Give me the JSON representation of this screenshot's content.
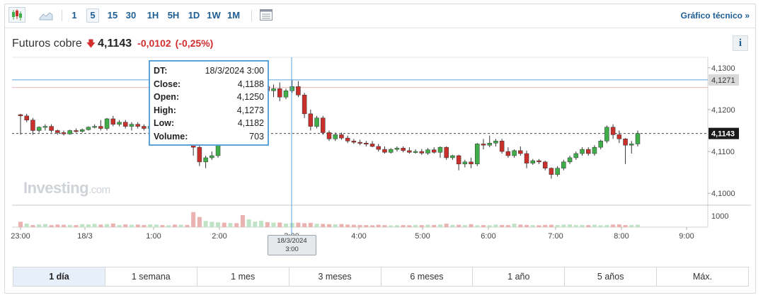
{
  "toolbar": {
    "icons": [
      "candlestick-chart-icon",
      "area-chart-icon",
      "calendar-grid-icon"
    ],
    "timeframes": [
      {
        "label": "1",
        "active": false
      },
      {
        "label": "5",
        "active": true
      },
      {
        "label": "15",
        "active": false
      },
      {
        "label": "30",
        "active": false
      },
      {
        "label": "1H",
        "active": false
      },
      {
        "label": "5H",
        "active": false
      },
      {
        "label": "1D",
        "active": false
      },
      {
        "label": "1W",
        "active": false
      },
      {
        "label": "1M",
        "active": false
      }
    ],
    "technical_link": "Gráfico técnico »"
  },
  "header": {
    "name": "Futuros cobre",
    "price": "4,1143",
    "change": "-0,0102",
    "change_pct": "(-0,25%)",
    "info_label": "i"
  },
  "tooltip": {
    "dt_label": "DT:",
    "dt_value": "18/3/2024 3:00",
    "close_label": "Close:",
    "close_value": "4,1188",
    "open_label": "Open:",
    "open_value": "4,1250",
    "high_label": "High:",
    "high_value": "4,1273",
    "low_label": "Low:",
    "low_value": "4,1182",
    "volume_label": "Volume:",
    "volume_value": "703"
  },
  "crosshair_date_line1": "18/3/2024",
  "crosshair_date_line2": "3:00",
  "watermark": {
    "brand": "Investing",
    "domain": ".com"
  },
  "ranges": [
    {
      "label": "1 día",
      "active": true
    },
    {
      "label": "1 semana",
      "active": false
    },
    {
      "label": "1 mes",
      "active": false
    },
    {
      "label": "3 meses",
      "active": false
    },
    {
      "label": "6 meses",
      "active": false
    },
    {
      "label": "1 año",
      "active": false
    },
    {
      "label": "5 años",
      "active": false
    },
    {
      "label": "Máx.",
      "active": false
    }
  ],
  "colors": {
    "up": "#3fae49",
    "down": "#c9302c",
    "accent": "#1e5d94",
    "crosshair": "#5ba2d9"
  },
  "chart_data": {
    "type": "candlestick",
    "x_ticks": [
      "23:00",
      "18/3",
      "1:00",
      "2:00",
      "3:00",
      "4:00",
      "5:00",
      "6:00",
      "7:00",
      "8:00",
      "9:00"
    ],
    "y_ticks": [
      "4,1000",
      "4,1100",
      "4,1200",
      "4,1300"
    ],
    "y_ticks_values": [
      4.1,
      4.11,
      4.12,
      4.13
    ],
    "volume_tick": "1000",
    "ylim": [
      4.0975,
      4.1325
    ],
    "last_price": 4.1143,
    "last_price_label": "4,1143",
    "crosshair_price": 4.1271,
    "crosshair_price_label": "4,1271",
    "reference_line": 4.1253,
    "candles": [
      [
        4.1188,
        4.119,
        4.114,
        4.1185
      ],
      [
        4.1185,
        4.119,
        4.117,
        4.1175
      ],
      [
        4.1175,
        4.118,
        4.114,
        4.115
      ],
      [
        4.115,
        4.116,
        4.1145,
        4.1158
      ],
      [
        4.1158,
        4.1165,
        4.115,
        4.116
      ],
      [
        4.116,
        4.1165,
        4.1145,
        4.115
      ],
      [
        4.115,
        4.1152,
        4.114,
        4.1145
      ],
      [
        4.1145,
        4.115,
        4.1138,
        4.1142
      ],
      [
        4.1142,
        4.1152,
        4.114,
        4.115
      ],
      [
        4.115,
        4.1155,
        4.1145,
        4.1148
      ],
      [
        4.1148,
        4.1155,
        4.1145,
        4.1152
      ],
      [
        4.1152,
        4.116,
        4.115,
        4.1158
      ],
      [
        4.1158,
        4.1165,
        4.1155,
        4.116
      ],
      [
        4.116,
        4.1175,
        4.115,
        4.1155
      ],
      [
        4.1155,
        4.118,
        4.115,
        4.1178
      ],
      [
        4.1178,
        4.1185,
        4.116,
        4.1165
      ],
      [
        4.1165,
        4.1175,
        4.116,
        4.117
      ],
      [
        4.117,
        4.1175,
        4.1155,
        4.116
      ],
      [
        4.116,
        4.117,
        4.115,
        4.1165
      ],
      [
        4.1165,
        4.117,
        4.1155,
        4.116
      ],
      [
        4.116,
        4.1165,
        4.115,
        4.1155
      ],
      [
        4.1155,
        4.1165,
        4.1145,
        4.116
      ],
      [
        4.116,
        4.117,
        4.115,
        4.1165
      ],
      [
        4.1165,
        4.117,
        4.1155,
        4.1158
      ],
      [
        4.1158,
        4.1165,
        4.115,
        4.116
      ],
      [
        4.116,
        4.1165,
        4.1145,
        4.115
      ],
      [
        4.115,
        4.116,
        4.114,
        4.1155
      ],
      [
        4.1155,
        4.116,
        4.1145,
        4.115
      ],
      [
        4.115,
        4.1155,
        4.109,
        4.111
      ],
      [
        4.111,
        4.1115,
        4.1065,
        4.1075
      ],
      [
        4.1075,
        4.109,
        4.106,
        4.1085
      ],
      [
        4.1085,
        4.11,
        4.108,
        4.109
      ],
      [
        4.109,
        4.124,
        4.1085,
        4.123
      ],
      [
        4.123,
        4.125,
        4.12,
        4.1215
      ],
      [
        4.1215,
        4.1245,
        4.121,
        4.124
      ],
      [
        4.124,
        4.1255,
        4.122,
        4.123
      ],
      [
        4.125,
        4.1273,
        4.1182,
        4.1188
      ],
      [
        4.1188,
        4.1215,
        4.1175,
        4.121
      ],
      [
        4.121,
        4.123,
        4.1205,
        4.1225
      ],
      [
        4.1225,
        4.126,
        4.122,
        4.1255
      ],
      [
        4.1255,
        4.127,
        4.124,
        4.1245
      ],
      [
        4.1245,
        4.126,
        4.123,
        4.125
      ],
      [
        4.125,
        4.1265,
        4.122,
        4.123
      ],
      [
        4.123,
        4.125,
        4.1225,
        4.1245
      ],
      [
        4.1245,
        4.127,
        4.124,
        4.1255
      ],
      [
        4.1255,
        4.1268,
        4.123,
        4.1235
      ],
      [
        4.1235,
        4.124,
        4.118,
        4.119
      ],
      [
        4.119,
        4.12,
        4.115,
        4.116
      ],
      [
        4.116,
        4.1185,
        4.1155,
        4.118
      ],
      [
        4.118,
        4.1185,
        4.114,
        4.1145
      ],
      [
        4.1145,
        4.115,
        4.1125,
        4.113
      ],
      [
        4.113,
        4.1145,
        4.1125,
        4.114
      ],
      [
        4.114,
        4.1145,
        4.1128,
        4.1132
      ],
      [
        4.1132,
        4.1138,
        4.112,
        4.1125
      ],
      [
        4.1125,
        4.113,
        4.1118,
        4.1122
      ],
      [
        4.1122,
        4.1128,
        4.1115,
        4.112
      ],
      [
        4.112,
        4.1125,
        4.1112,
        4.1118
      ],
      [
        4.1118,
        4.1125,
        4.111,
        4.1112
      ],
      [
        4.1112,
        4.1118,
        4.11,
        4.1105
      ],
      [
        4.1105,
        4.1112,
        4.1095,
        4.1098
      ],
      [
        4.1098,
        4.1108,
        4.1095,
        4.1105
      ],
      [
        4.1105,
        4.1112,
        4.11,
        4.1108
      ],
      [
        4.1108,
        4.1112,
        4.1098,
        4.1102
      ],
      [
        4.1102,
        4.111,
        4.1095,
        4.1098
      ],
      [
        4.1098,
        4.1105,
        4.1095,
        4.11
      ],
      [
        4.11,
        4.1106,
        4.1092,
        4.1096
      ],
      [
        4.1096,
        4.1108,
        4.1092,
        4.1104
      ],
      [
        4.1104,
        4.111,
        4.1095,
        4.1098
      ],
      [
        4.1098,
        4.1112,
        4.1085,
        4.111
      ],
      [
        4.111,
        4.1112,
        4.108,
        4.1085
      ],
      [
        4.1085,
        4.1092,
        4.108,
        4.109
      ],
      [
        4.109,
        4.1092,
        4.1055,
        4.107
      ],
      [
        4.107,
        4.108,
        4.1062,
        4.1075
      ],
      [
        4.1075,
        4.1085,
        4.106,
        4.107
      ],
      [
        4.107,
        4.112,
        4.1065,
        4.1118
      ],
      [
        4.1118,
        4.113,
        4.1105,
        4.1115
      ],
      [
        4.1115,
        4.1138,
        4.111,
        4.112
      ],
      [
        4.112,
        4.113,
        4.1112,
        4.1125
      ],
      [
        4.1125,
        4.113,
        4.1095,
        4.11
      ],
      [
        4.11,
        4.111,
        4.1085,
        4.109
      ],
      [
        4.109,
        4.1105,
        4.1085,
        4.1102
      ],
      [
        4.1102,
        4.1112,
        4.109,
        4.1095
      ],
      [
        4.1095,
        4.1102,
        4.106,
        4.1072
      ],
      [
        4.1072,
        4.1082,
        4.1068,
        4.1078
      ],
      [
        4.1078,
        4.1082,
        4.107,
        4.1075
      ],
      [
        4.1075,
        4.1078,
        4.1055,
        4.106
      ],
      [
        4.106,
        4.1062,
        4.1035,
        4.1045
      ],
      [
        4.1045,
        4.1065,
        4.104,
        4.106
      ],
      [
        4.106,
        4.108,
        4.1055,
        4.1075
      ],
      [
        4.1075,
        4.109,
        4.107,
        4.1085
      ],
      [
        4.1085,
        4.11,
        4.108,
        4.1095
      ],
      [
        4.1095,
        4.111,
        4.109,
        4.1105
      ],
      [
        4.1105,
        4.111,
        4.109,
        4.1095
      ],
      [
        4.1095,
        4.1115,
        4.109,
        4.111
      ],
      [
        4.111,
        4.1128,
        4.1105,
        4.1125
      ],
      [
        4.1125,
        4.1162,
        4.112,
        4.1158
      ],
      [
        4.1158,
        4.1165,
        4.113,
        4.114
      ],
      [
        4.114,
        4.115,
        4.112,
        4.113
      ],
      [
        4.113,
        4.1132,
        4.107,
        4.1115
      ],
      [
        4.1115,
        4.1125,
        4.1095,
        4.1118
      ],
      [
        4.1118,
        4.115,
        4.1112,
        4.1143
      ]
    ],
    "volumes": [
      310,
      210,
      120,
      160,
      180,
      120,
      150,
      140,
      130,
      120,
      170,
      160,
      190,
      150,
      180,
      210,
      120,
      160,
      140,
      150,
      130,
      160,
      150,
      120,
      110,
      150,
      140,
      130,
      880,
      590,
      360,
      310,
      280,
      260,
      240,
      230,
      703,
      450,
      320,
      380,
      290,
      260,
      270,
      210,
      240,
      260,
      230,
      250,
      200,
      190,
      170,
      160,
      180,
      150,
      140,
      130,
      120,
      110,
      140,
      120,
      100,
      110,
      120,
      110,
      130,
      120,
      140,
      130,
      150,
      200,
      130,
      140,
      120,
      170,
      110,
      120,
      110,
      150,
      130,
      120,
      200,
      150,
      130,
      120,
      110,
      130,
      140,
      120,
      150,
      160,
      120,
      130,
      120,
      140,
      110,
      120,
      150,
      160,
      120,
      130,
      140
    ],
    "volume_max": 1200,
    "volume_up": [
      false,
      true,
      false,
      true,
      true,
      false,
      false,
      false,
      true,
      false,
      true,
      true,
      true,
      false,
      true,
      false,
      true,
      false,
      true,
      false,
      false,
      true,
      true,
      false,
      true,
      false,
      true,
      false,
      false,
      false,
      true,
      true,
      true,
      false,
      true,
      false,
      false,
      true,
      true,
      true,
      false,
      true,
      false,
      true,
      true,
      false,
      false,
      false,
      true,
      false,
      false,
      true,
      false,
      false,
      false,
      false,
      false,
      false,
      false,
      false,
      true,
      true,
      false,
      false,
      true,
      false,
      true,
      false,
      true,
      false,
      true,
      false,
      true,
      false,
      true,
      false,
      true,
      true,
      false,
      false,
      true,
      false,
      false,
      true,
      false,
      false,
      false,
      true,
      true,
      true,
      true,
      true,
      false,
      true,
      true,
      true,
      false,
      false,
      false,
      true,
      true
    ]
  }
}
